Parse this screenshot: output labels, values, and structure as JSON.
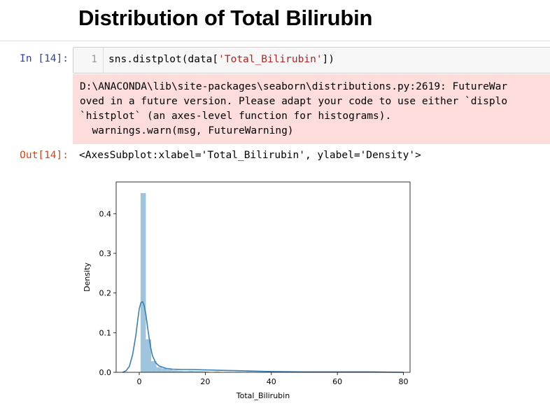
{
  "heading": "Distribution of Total Bilirubin",
  "input_cell": {
    "prompt": "In [14]:",
    "line_number": "1",
    "code_prefix": "sns.distplot(data[",
    "code_string": "'Total_Bilirubin'",
    "code_suffix": "])"
  },
  "stderr": {
    "lines": [
      "D:\\ANACONDA\\lib\\site-packages\\seaborn\\distributions.py:2619: FutureWar",
      "oved in a future version. Please adapt your code to use either `displo",
      "`histplot` (an axes-level function for histograms).",
      "  warnings.warn(msg, FutureWarning)"
    ]
  },
  "output_cell": {
    "prompt": "Out[14]:",
    "text": "<AxesSubplot:xlabel='Total_Bilirubin', ylabel='Density'>"
  },
  "chart_data": {
    "type": "bar",
    "xlabel": "Total_Bilirubin",
    "ylabel": "Density",
    "xlim": [
      -7,
      82
    ],
    "ylim": [
      0,
      0.48
    ],
    "x_ticks": [
      0,
      20,
      40,
      60,
      80
    ],
    "y_ticks": [
      0.0,
      0.1,
      0.2,
      0.3,
      0.4
    ],
    "bin_width": 1.6,
    "bins": [
      {
        "x0": 0.4,
        "density": 0.452
      },
      {
        "x0": 2.0,
        "density": 0.083
      },
      {
        "x0": 3.6,
        "density": 0.028
      },
      {
        "x0": 5.2,
        "density": 0.013
      },
      {
        "x0": 6.8,
        "density": 0.01
      },
      {
        "x0": 8.4,
        "density": 0.007
      },
      {
        "x0": 10.0,
        "density": 0.005
      },
      {
        "x0": 11.6,
        "density": 0.004
      },
      {
        "x0": 13.2,
        "density": 0.003
      },
      {
        "x0": 14.8,
        "density": 0.004
      },
      {
        "x0": 16.4,
        "density": 0.003
      },
      {
        "x0": 18.0,
        "density": 0.003
      },
      {
        "x0": 19.6,
        "density": 0.002
      },
      {
        "x0": 22.8,
        "density": 0.002
      },
      {
        "x0": 26.0,
        "density": 0.001
      },
      {
        "x0": 29.2,
        "density": 0.001
      },
      {
        "x0": 32.4,
        "density": 0.001
      },
      {
        "x0": 40.4,
        "density": 0.001
      },
      {
        "x0": 74.8,
        "density": 0.001
      }
    ],
    "kde": {
      "x": [
        -5,
        -4,
        -3,
        -2,
        -1,
        -0.5,
        0,
        0.5,
        1,
        1.5,
        2,
        2.5,
        3,
        3.5,
        4,
        5,
        6,
        8,
        10,
        13,
        16,
        20,
        25,
        30,
        35,
        40,
        50,
        60,
        70,
        80
      ],
      "y": [
        0.0,
        0.004,
        0.015,
        0.045,
        0.095,
        0.13,
        0.16,
        0.176,
        0.178,
        0.168,
        0.145,
        0.115,
        0.085,
        0.06,
        0.042,
        0.024,
        0.016,
        0.01,
        0.008,
        0.007,
        0.007,
        0.006,
        0.005,
        0.004,
        0.003,
        0.002,
        0.001,
        0.001,
        0.001,
        0.0
      ]
    },
    "colors": {
      "bar": "#9ac1dc",
      "kde": "#3a7fb5"
    }
  }
}
